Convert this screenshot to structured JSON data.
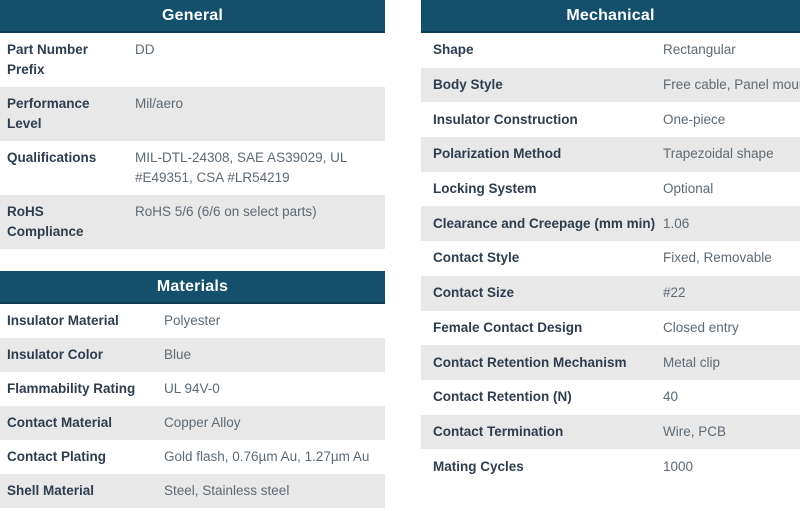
{
  "theme": {
    "header_bg": "#14506c",
    "header_border": "#0e3d55",
    "header_text": "#ffffff",
    "stripe_bg": "#e8e8e8",
    "label_color": "#2e3d4e",
    "value_color": "#5e6a74",
    "page_bg": "#ffffff"
  },
  "tables": [
    {
      "id": "general",
      "title": "General",
      "rows": [
        {
          "label": "Part Number Prefix",
          "value": "DD"
        },
        {
          "label": "Performance Level",
          "value": "Mil/aero"
        },
        {
          "label": "Qualifications",
          "value": "MIL-DTL-24308, SAE AS39029, UL #E49351, CSA #LR54219"
        },
        {
          "label": "RoHS Compliance",
          "value": "RoHS 5/6 (6/6 on select parts)"
        }
      ]
    },
    {
      "id": "materials",
      "title": "Materials",
      "rows": [
        {
          "label": "Insulator Material",
          "value": "Polyester"
        },
        {
          "label": "Insulator Color",
          "value": "Blue"
        },
        {
          "label": "Flammability Rating",
          "value": "UL 94V-0"
        },
        {
          "label": "Contact Material",
          "value": "Copper Alloy"
        },
        {
          "label": "Contact Plating",
          "value": "Gold flash, 0.76µm Au, 1.27µm Au"
        },
        {
          "label": "Shell Material",
          "value": "Steel, Stainless steel"
        }
      ]
    },
    {
      "id": "mechanical",
      "title": "Mechanical",
      "rows": [
        {
          "label": "Shape",
          "value": "Rectangular"
        },
        {
          "label": "Body Style",
          "value": "Free cable, Panel mount"
        },
        {
          "label": "Insulator Construction",
          "value": "One-piece"
        },
        {
          "label": "Polarization Method",
          "value": "Trapezoidal shape"
        },
        {
          "label": "Locking System",
          "value": "Optional"
        },
        {
          "label": "Clearance and Creepage (mm min)",
          "value": "1.06"
        },
        {
          "label": "Contact Style",
          "value": "Fixed, Removable"
        },
        {
          "label": "Contact Size",
          "value": "#22"
        },
        {
          "label": "Female Contact Design",
          "value": "Closed entry"
        },
        {
          "label": "Contact Retention Mechanism",
          "value": "Metal clip"
        },
        {
          "label": "Contact Retention (N)",
          "value": "40"
        },
        {
          "label": "Contact Termination",
          "value": "Wire, PCB"
        },
        {
          "label": "Mating Cycles",
          "value": "1000"
        }
      ]
    }
  ]
}
